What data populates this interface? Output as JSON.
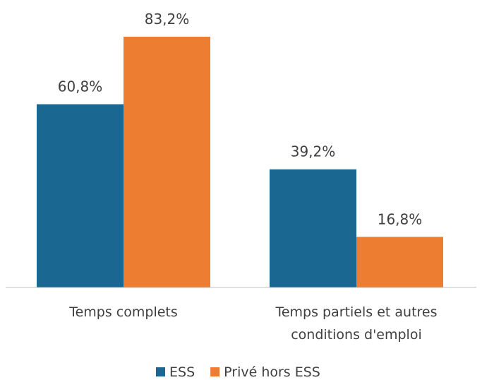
{
  "chart_data": {
    "type": "bar",
    "categories": [
      "Temps complets",
      "Temps partiels et autres conditions d'emploi"
    ],
    "series": [
      {
        "name": "ESS",
        "color": "#1a6792",
        "values": [
          60.8,
          39.2
        ],
        "value_labels": [
          "60,8%",
          "39,2%"
        ]
      },
      {
        "name": "Privé hors ESS",
        "color": "#ed7d31",
        "values": [
          83.2,
          16.8
        ],
        "value_labels": [
          "83,2%",
          "16,8%"
        ]
      }
    ],
    "legend": "bottom"
  }
}
